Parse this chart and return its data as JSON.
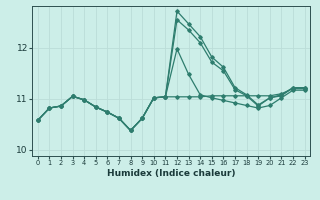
{
  "xlabel": "Humidex (Indice chaleur)",
  "bg_color": "#cceee8",
  "grid_color": "#bbddd8",
  "line_color": "#2e7d6e",
  "x_values": [
    0,
    1,
    2,
    3,
    4,
    5,
    6,
    7,
    8,
    9,
    10,
    11,
    12,
    13,
    14,
    15,
    16,
    17,
    18,
    19,
    20,
    21,
    22,
    23
  ],
  "line1": [
    10.58,
    10.82,
    10.86,
    11.05,
    10.98,
    10.84,
    10.74,
    10.62,
    10.38,
    10.62,
    11.02,
    11.04,
    12.72,
    12.47,
    12.22,
    11.82,
    11.62,
    11.22,
    11.08,
    10.88,
    11.02,
    11.08,
    11.22,
    11.22
  ],
  "line2": [
    10.58,
    10.82,
    10.86,
    11.05,
    10.98,
    10.84,
    10.74,
    10.62,
    10.38,
    10.62,
    11.02,
    11.04,
    11.04,
    11.04,
    11.04,
    11.06,
    11.06,
    11.06,
    11.06,
    11.06,
    11.06,
    11.1,
    11.2,
    11.2
  ],
  "line3": [
    10.58,
    10.82,
    10.86,
    11.05,
    10.98,
    10.84,
    10.74,
    10.62,
    10.38,
    10.62,
    11.02,
    11.04,
    11.98,
    11.48,
    11.08,
    11.02,
    10.97,
    10.92,
    10.87,
    10.82,
    10.87,
    11.02,
    11.17,
    11.17
  ],
  "line4": [
    10.58,
    10.82,
    10.86,
    11.05,
    10.98,
    10.84,
    10.74,
    10.62,
    10.38,
    10.62,
    11.02,
    11.04,
    12.55,
    12.35,
    12.1,
    11.72,
    11.55,
    11.18,
    11.06,
    10.86,
    11.02,
    11.06,
    11.22,
    11.22
  ],
  "ylim": [
    9.88,
    12.82
  ],
  "yticks": [
    10,
    11,
    12
  ],
  "xticks": [
    0,
    1,
    2,
    3,
    4,
    5,
    6,
    7,
    8,
    9,
    10,
    11,
    12,
    13,
    14,
    15,
    16,
    17,
    18,
    19,
    20,
    21,
    22,
    23
  ]
}
